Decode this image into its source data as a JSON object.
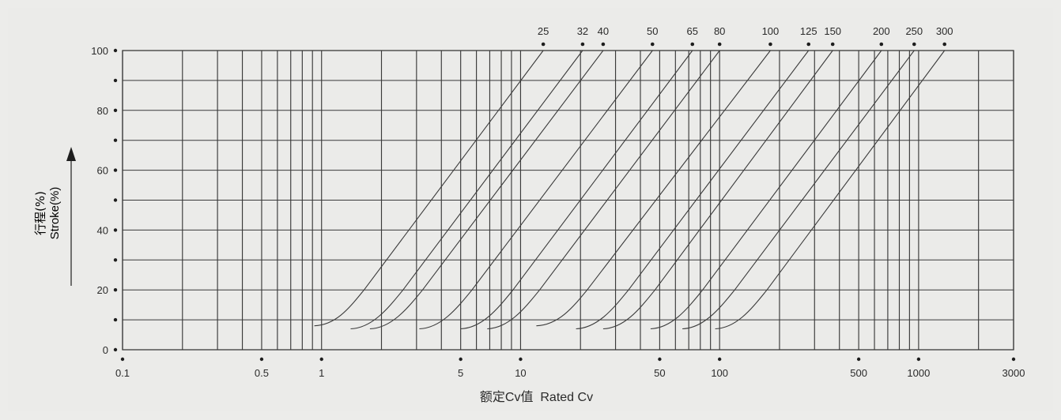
{
  "chart_data": {
    "type": "line",
    "title": "",
    "xlabel": "额定Cv值  Rated Cv",
    "ylabel_cn": "行程(%)",
    "ylabel_en": "Stroke(%)",
    "x_scale": "log",
    "xlim": [
      0.1,
      3000
    ],
    "ylim": [
      0,
      100
    ],
    "grid": true,
    "legend": "none",
    "x_tick_labels": [
      {
        "value": 0.1,
        "label": "0.1"
      },
      {
        "value": 0.5,
        "label": "0.5"
      },
      {
        "value": 1,
        "label": "1"
      },
      {
        "value": 5,
        "label": "5"
      },
      {
        "value": 10,
        "label": "10"
      },
      {
        "value": 50,
        "label": "50"
      },
      {
        "value": 100,
        "label": "100"
      },
      {
        "value": 500,
        "label": "500"
      },
      {
        "value": 1000,
        "label": "1000"
      },
      {
        "value": 3000,
        "label": "3000"
      }
    ],
    "y_ticks": [
      0,
      10,
      20,
      30,
      40,
      50,
      60,
      70,
      80,
      90,
      100
    ],
    "y_tick_labels": [
      {
        "value": 0,
        "label": "0"
      },
      {
        "value": 20,
        "label": "20"
      },
      {
        "value": 40,
        "label": "40"
      },
      {
        "value": 60,
        "label": "60"
      },
      {
        "value": 80,
        "label": "80"
      },
      {
        "value": 100,
        "label": "100"
      }
    ],
    "x_gridlines": [
      0.1,
      0.2,
      0.3,
      0.4,
      0.5,
      0.6,
      0.7,
      0.8,
      0.9,
      1,
      2,
      3,
      4,
      5,
      6,
      7,
      8,
      9,
      10,
      20,
      30,
      40,
      50,
      60,
      70,
      80,
      90,
      100,
      200,
      300,
      400,
      500,
      600,
      700,
      800,
      900,
      1000,
      2000,
      3000
    ],
    "series": [
      {
        "name": "25",
        "cv100": 13,
        "cv_start": 0.92,
        "stroke_start": 8
      },
      {
        "name": "32",
        "cv100": 20.5,
        "cv_start": 1.4,
        "stroke_start": 7
      },
      {
        "name": "40",
        "cv100": 26,
        "cv_start": 1.75,
        "stroke_start": 7
      },
      {
        "name": "50",
        "cv100": 46,
        "cv_start": 3.1,
        "stroke_start": 7
      },
      {
        "name": "65",
        "cv100": 73,
        "cv_start": 5,
        "stroke_start": 7
      },
      {
        "name": "80",
        "cv100": 100,
        "cv_start": 6.8,
        "stroke_start": 7
      },
      {
        "name": "100",
        "cv100": 180,
        "cv_start": 12,
        "stroke_start": 8
      },
      {
        "name": "125",
        "cv100": 280,
        "cv_start": 19,
        "stroke_start": 7
      },
      {
        "name": "150",
        "cv100": 370,
        "cv_start": 26,
        "stroke_start": 7
      },
      {
        "name": "200",
        "cv100": 650,
        "cv_start": 45,
        "stroke_start": 7
      },
      {
        "name": "250",
        "cv100": 950,
        "cv_start": 65,
        "stroke_start": 7
      },
      {
        "name": "300",
        "cv100": 1350,
        "cv_start": 95,
        "stroke_start": 7
      }
    ]
  }
}
